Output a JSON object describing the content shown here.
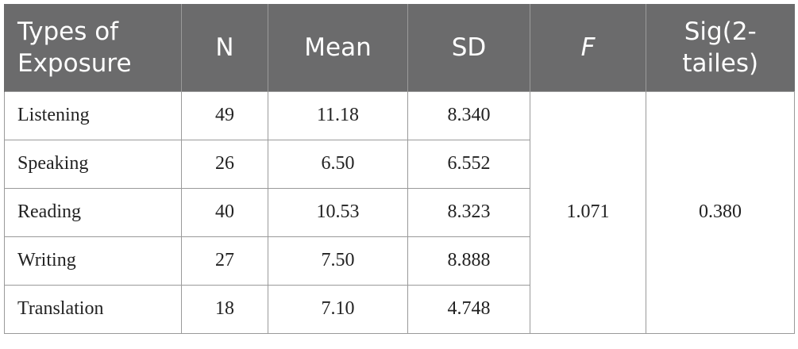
{
  "table": {
    "header": [
      "Types of Exposure",
      "N",
      "Mean",
      "SD",
      "F",
      "Sig(2-tailes)"
    ],
    "rows": [
      [
        "Listening",
        "49",
        "11.18",
        "8.340"
      ],
      [
        "Speaking",
        "26",
        "6.50",
        "6.552"
      ],
      [
        "Reading",
        "40",
        "10.53",
        "8.323"
      ],
      [
        "Writing",
        "27",
        "7.50",
        "8.888"
      ],
      [
        "Translation",
        "18",
        "7.10",
        "4.748"
      ]
    ],
    "f": "1.071",
    "sig": "0.380"
  }
}
